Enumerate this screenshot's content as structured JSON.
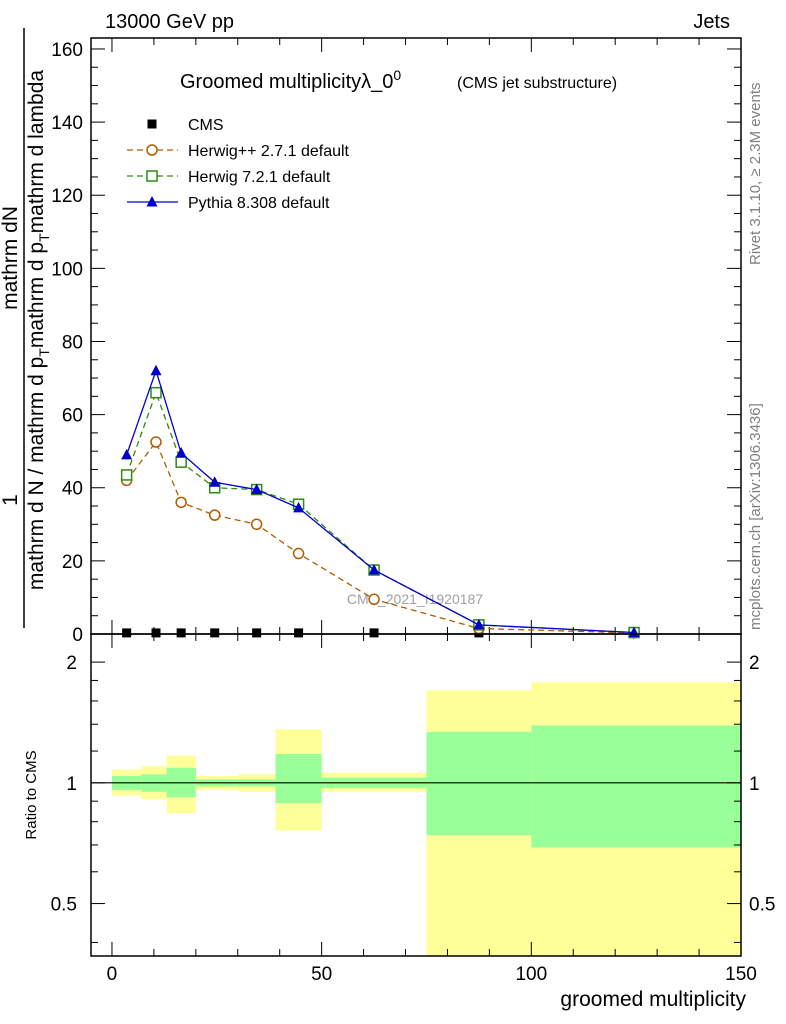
{
  "header": {
    "left": "13000 GeV pp",
    "right": "Jets"
  },
  "side_text": {
    "top": "Rivet 3.1.10, ≥ 2.3M events",
    "bottom": "mcplots.cern.ch [arXiv:1306.3436]"
  },
  "colors": {
    "herwigpp": "#b35a00",
    "herwig7": "#2e8b10",
    "pythia": "#0000cc",
    "band_inner": "#99ff99",
    "band_outer": "#ffff99"
  },
  "chart_data": [
    {
      "type": "line",
      "title": "Groomed multiplicityλ_0",
      "title_sup": "0",
      "subtitle": "(CMS jet substructure)",
      "watermark": "CMS_2021_I1920187",
      "ylabel": {
        "num_prefix": "1",
        "num": "mathrm dN",
        "den_a": "mathrm d N / mathrm d p",
        "den_a_sub": "T",
        "den_b": "mathrm d p",
        "den_b_sub": "T",
        "den_c": "mathrm d lambda"
      },
      "xlim": [
        -5,
        150
      ],
      "ylim": [
        0,
        163
      ],
      "yticks": [
        0,
        20,
        40,
        60,
        80,
        100,
        120,
        140,
        160
      ],
      "yticklabels": [
        "0",
        "20",
        "40",
        "60",
        "80",
        "100",
        "120",
        "140",
        "160"
      ],
      "x": [
        3.5,
        10.5,
        16.5,
        24.5,
        34.5,
        44.5,
        62.5,
        87.5,
        124.5
      ],
      "series": [
        {
          "name": "CMS",
          "marker": "square",
          "values": [
            0.3,
            0.3,
            0.3,
            0.3,
            0.3,
            0.3,
            0.3,
            0.3,
            0.3
          ]
        },
        {
          "name": "Herwig++ 2.7.1 default",
          "marker": "circle",
          "values": [
            42,
            52.5,
            36,
            32.5,
            30,
            22,
            9.5,
            1.5,
            0.3
          ]
        },
        {
          "name": "Herwig 7.2.1 default",
          "marker": "open-square",
          "values": [
            43.5,
            66,
            47,
            40,
            39.5,
            35.5,
            17.5,
            2.5,
            0.4
          ]
        },
        {
          "name": "Pythia 8.308 default",
          "marker": "triangle",
          "values": [
            49,
            72,
            49.5,
            41.5,
            39.5,
            34.5,
            17.5,
            2.5,
            0.4
          ]
        }
      ]
    },
    {
      "type": "bar",
      "ylabel": "Ratio to CMS",
      "xlabel": "groomed multiplicity",
      "xlim": [
        -5,
        150
      ],
      "xticks": [
        0,
        50,
        100,
        150
      ],
      "xticklabels": [
        "0",
        "50",
        "100",
        "150"
      ],
      "ylim": [
        0.37,
        2.35
      ],
      "yticks": [
        0.5,
        1,
        2
      ],
      "yticklabels": [
        "0.5",
        "1",
        "2"
      ],
      "bins": [
        {
          "lo": 0,
          "hi": 7,
          "inner": [
            0.96,
            1.04
          ],
          "outer": [
            0.93,
            1.08
          ]
        },
        {
          "lo": 7,
          "hi": 13,
          "inner": [
            0.95,
            1.05
          ],
          "outer": [
            0.91,
            1.1
          ]
        },
        {
          "lo": 13,
          "hi": 20,
          "inner": [
            0.92,
            1.09
          ],
          "outer": [
            0.84,
            1.17
          ]
        },
        {
          "lo": 20,
          "hi": 30,
          "inner": [
            0.98,
            1.02
          ],
          "outer": [
            0.96,
            1.04
          ]
        },
        {
          "lo": 30,
          "hi": 39,
          "inner": [
            0.98,
            1.02
          ],
          "outer": [
            0.95,
            1.05
          ]
        },
        {
          "lo": 39,
          "hi": 50,
          "inner": [
            0.89,
            1.18
          ],
          "outer": [
            0.76,
            1.36
          ]
        },
        {
          "lo": 50,
          "hi": 75,
          "inner": [
            0.97,
            1.03
          ],
          "outer": [
            0.95,
            1.06
          ]
        },
        {
          "lo": 75,
          "hi": 100,
          "inner": [
            0.74,
            1.34
          ],
          "outer": [
            0.37,
            1.7
          ]
        },
        {
          "lo": 100,
          "hi": 150,
          "inner": [
            0.69,
            1.39
          ],
          "outer": [
            0.37,
            1.78
          ]
        }
      ]
    }
  ]
}
